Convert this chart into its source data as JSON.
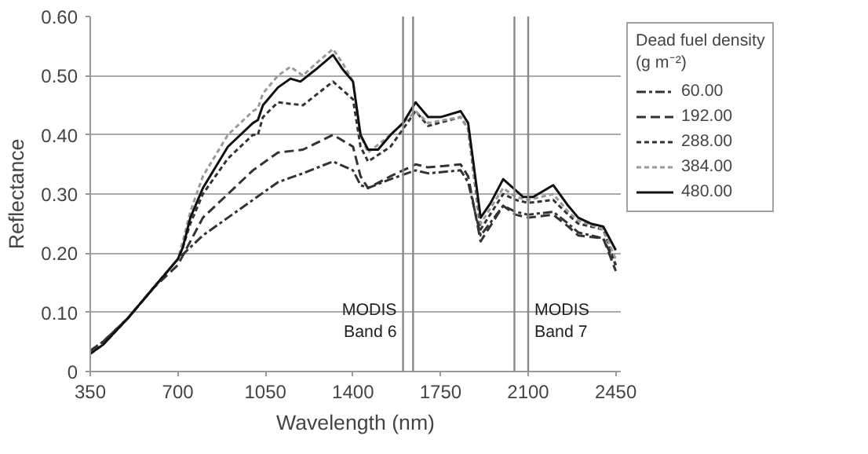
{
  "chart_data": {
    "type": "line",
    "xlabel": "Wavelength (nm)",
    "ylabel": "Reflectance",
    "legend_title": "Dead fuel density\n(g m⁻²)",
    "xlim": [
      350,
      2470
    ],
    "ylim": [
      0,
      0.6
    ],
    "xticks": [
      350,
      700,
      1050,
      1400,
      1750,
      2100,
      2450
    ],
    "yticks": [
      0,
      {
        "value": 0.1,
        "label": "0.10"
      },
      {
        "value": 0.2,
        "label": "0.20"
      },
      {
        "value": 0.3,
        "label": "0.30"
      },
      {
        "value": 0.4,
        "label": "0.40"
      },
      {
        "value": 0.5,
        "label": "0.50"
      },
      {
        "value": 0.6,
        "label": "0.60"
      }
    ],
    "grid": "y",
    "legend": "right",
    "marker": "none",
    "series": [
      {
        "name": "60.00",
        "color": "#333333",
        "line_style": "dashdot",
        "x": [
          350,
          400,
          500,
          600,
          700,
          800,
          900,
          1000,
          1100,
          1200,
          1320,
          1400,
          1430,
          1460,
          1550,
          1650,
          1700,
          1830,
          1860,
          1910,
          2000,
          2050,
          2100,
          2200,
          2260,
          2300,
          2400,
          2450
        ],
        "values": [
          0.035,
          0.05,
          0.09,
          0.14,
          0.19,
          0.23,
          0.26,
          0.29,
          0.32,
          0.335,
          0.355,
          0.34,
          0.315,
          0.31,
          0.325,
          0.34,
          0.335,
          0.34,
          0.32,
          0.23,
          0.28,
          0.27,
          0.265,
          0.27,
          0.25,
          0.235,
          0.225,
          0.18
        ]
      },
      {
        "name": "192.00",
        "color": "#333333",
        "line_style": "dashed",
        "x": [
          350,
          400,
          500,
          600,
          700,
          800,
          900,
          1000,
          1100,
          1200,
          1320,
          1400,
          1430,
          1460,
          1550,
          1650,
          1700,
          1830,
          1860,
          1910,
          2000,
          2050,
          2100,
          2200,
          2260,
          2300,
          2400,
          2450
        ],
        "values": [
          0.035,
          0.05,
          0.09,
          0.14,
          0.18,
          0.26,
          0.3,
          0.34,
          0.37,
          0.375,
          0.4,
          0.38,
          0.33,
          0.31,
          0.33,
          0.35,
          0.345,
          0.35,
          0.33,
          0.22,
          0.28,
          0.265,
          0.26,
          0.265,
          0.245,
          0.23,
          0.225,
          0.17
        ]
      },
      {
        "name": "288.00",
        "color": "#333333",
        "line_style": "dotted",
        "x": [
          350,
          400,
          500,
          600,
          700,
          720,
          750,
          800,
          900,
          1000,
          1020,
          1040,
          1100,
          1200,
          1320,
          1400,
          1430,
          1460,
          1550,
          1650,
          1700,
          1830,
          1860,
          1910,
          2000,
          2050,
          2100,
          2200,
          2260,
          2300,
          2400,
          2450
        ],
        "values": [
          0.03,
          0.045,
          0.09,
          0.14,
          0.19,
          0.21,
          0.25,
          0.3,
          0.36,
          0.4,
          0.4,
          0.43,
          0.455,
          0.45,
          0.49,
          0.46,
          0.38,
          0.355,
          0.38,
          0.44,
          0.415,
          0.43,
          0.41,
          0.24,
          0.3,
          0.29,
          0.285,
          0.29,
          0.265,
          0.25,
          0.24,
          0.18
        ]
      },
      {
        "name": "384.00",
        "color": "#999999",
        "line_style": "dotted",
        "x": [
          350,
          400,
          500,
          600,
          700,
          720,
          750,
          800,
          900,
          1000,
          1020,
          1040,
          1100,
          1150,
          1200,
          1250,
          1320,
          1360,
          1400,
          1430,
          1460,
          1550,
          1650,
          1700,
          1830,
          1860,
          1910,
          2000,
          2050,
          2100,
          2200,
          2260,
          2300,
          2400,
          2450
        ],
        "values": [
          0.03,
          0.045,
          0.09,
          0.14,
          0.19,
          0.22,
          0.27,
          0.33,
          0.4,
          0.44,
          0.445,
          0.47,
          0.5,
          0.515,
          0.5,
          0.52,
          0.545,
          0.52,
          0.49,
          0.4,
          0.37,
          0.4,
          0.44,
          0.42,
          0.43,
          0.41,
          0.25,
          0.31,
          0.295,
          0.29,
          0.3,
          0.27,
          0.255,
          0.24,
          0.19
        ]
      },
      {
        "name": "480.00",
        "color": "#111111",
        "line_style": "solid",
        "x": [
          350,
          400,
          500,
          600,
          700,
          720,
          750,
          800,
          900,
          1000,
          1020,
          1040,
          1100,
          1150,
          1190,
          1250,
          1320,
          1360,
          1400,
          1430,
          1460,
          1500,
          1550,
          1600,
          1650,
          1700,
          1750,
          1830,
          1860,
          1910,
          1950,
          2000,
          2040,
          2080,
          2120,
          2160,
          2200,
          2260,
          2300,
          2350,
          2400,
          2450
        ],
        "values": [
          0.03,
          0.045,
          0.09,
          0.14,
          0.19,
          0.21,
          0.26,
          0.31,
          0.38,
          0.42,
          0.425,
          0.45,
          0.48,
          0.495,
          0.49,
          0.51,
          0.535,
          0.51,
          0.49,
          0.4,
          0.375,
          0.375,
          0.4,
          0.42,
          0.455,
          0.43,
          0.43,
          0.44,
          0.42,
          0.26,
          0.285,
          0.325,
          0.31,
          0.295,
          0.295,
          0.305,
          0.315,
          0.28,
          0.26,
          0.25,
          0.245,
          0.205
        ]
      }
    ],
    "ref_lines": [
      {
        "axis": "x",
        "value": 1600,
        "label": "MODIS\nBand 6",
        "color": "#888888"
      },
      {
        "axis": "x",
        "value": 1640,
        "color": "#888888"
      },
      {
        "axis": "x",
        "value": 2045,
        "color": "#888888"
      },
      {
        "axis": "x",
        "value": 2100,
        "label": "MODIS\nBand 7",
        "color": "#888888"
      }
    ]
  }
}
